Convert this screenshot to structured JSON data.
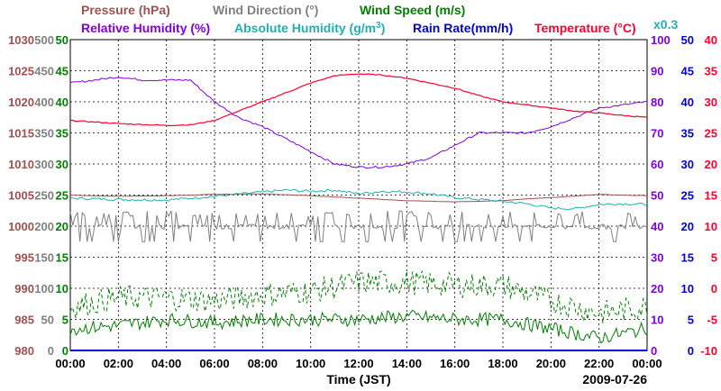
{
  "chart_data": {
    "type": "line",
    "x_axis": {
      "label": "Time (JST)",
      "date": "2009-07-26",
      "ticks": [
        "00:00",
        "02:00",
        "04:00",
        "06:00",
        "08:00",
        "10:00",
        "12:00",
        "14:00",
        "16:00",
        "18:00",
        "20:00",
        "22:00",
        "00:00"
      ],
      "range_hours": [
        0,
        24
      ]
    },
    "legend": [
      {
        "key": "pressure",
        "text": "Pressure (hPa)",
        "color": "#a05050"
      },
      {
        "key": "wind_dir",
        "text": "Wind Direction (°)",
        "color": "#808080"
      },
      {
        "key": "wind_speed",
        "text": "Wind Speed (m/s)",
        "color": "#008000"
      },
      {
        "key": "humidity",
        "text": "Relative Humidity (%)",
        "color": "#8000e0"
      },
      {
        "key": "abs_humidity_pre",
        "text": "Absolute Humidity (g/m",
        "color": "#20b0b0"
      },
      {
        "key": "abs_humidity_sup",
        "text": "3",
        "color": "#20b0b0"
      },
      {
        "key": "abs_humidity_post",
        "text": ")",
        "color": "#20b0b0"
      },
      {
        "key": "rain",
        "text": "Rain Rate(mm/h)",
        "color": "#0000e0"
      },
      {
        "key": "temperature",
        "text": "Temperature (°C)",
        "color": "#ff0030"
      },
      {
        "key": "rain_scale",
        "text": "x0.3",
        "color": "#20b0b0"
      }
    ],
    "axes": {
      "pressure": {
        "color": "#a05050",
        "labels": [
          "980",
          "985",
          "990",
          "995",
          "1000",
          "1005",
          "1010",
          "1015",
          "1020",
          "1025",
          "1030"
        ]
      },
      "wind_dir": {
        "color": "#808080",
        "labels": [
          "0",
          "50",
          "100",
          "150",
          "200",
          "250",
          "300",
          "350",
          "400",
          "450",
          "500"
        ]
      },
      "wind_speed": {
        "color": "#008000",
        "labels": [
          "0",
          "5",
          "10",
          "15",
          "20",
          "25",
          "30",
          "35",
          "40",
          "45",
          "50"
        ]
      },
      "humidity": {
        "color": "#8000e0",
        "labels": [
          "0",
          "10",
          "20",
          "30",
          "40",
          "50",
          "60",
          "70",
          "80",
          "90",
          "100"
        ]
      },
      "rain": {
        "color": "#0000e0",
        "labels": [
          "0",
          "5",
          "10",
          "15",
          "20",
          "25",
          "30",
          "35",
          "40",
          "45",
          "50"
        ]
      },
      "temperature": {
        "color": "#ff0030",
        "labels": [
          "-10",
          "-5",
          "0",
          "5",
          "10",
          "15",
          "20",
          "25",
          "30",
          "35",
          "40"
        ]
      }
    },
    "series": [
      {
        "name": "Temperature",
        "color": "#ff0030",
        "unit": "°C",
        "x": [
          0,
          2,
          4,
          5,
          6,
          7,
          8,
          9,
          10,
          11,
          12,
          13,
          14,
          15,
          16,
          17,
          18,
          19,
          20,
          21,
          22,
          23,
          24
        ],
        "y": [
          27.0,
          26.5,
          26.2,
          26.3,
          27.0,
          28.5,
          30.0,
          31.5,
          33.0,
          34.2,
          34.5,
          34.3,
          33.8,
          33.0,
          32.2,
          31.0,
          30.0,
          29.5,
          29.0,
          28.5,
          28.2,
          27.8,
          27.5
        ]
      },
      {
        "name": "Relative Humidity",
        "color": "#8000e0",
        "unit": "%",
        "x": [
          0,
          1,
          2,
          3,
          4,
          5,
          6,
          7,
          8,
          9,
          10,
          11,
          12,
          13,
          14,
          15,
          16,
          17,
          18,
          19,
          20,
          21,
          22,
          23,
          24
        ],
        "y": [
          86,
          87,
          88,
          87,
          87,
          87,
          80,
          75,
          72,
          68,
          64,
          60,
          59,
          59,
          60,
          62,
          66,
          70,
          70,
          70,
          72,
          75,
          78,
          79,
          80
        ]
      },
      {
        "name": "Absolute Humidity",
        "color": "#20b0b0",
        "unit": "g/m3",
        "x": [
          0,
          2,
          4,
          6,
          8,
          9,
          10,
          11,
          12,
          13,
          14,
          15,
          16,
          17,
          18,
          19,
          20,
          21,
          22,
          23,
          24
        ],
        "y": [
          24.5,
          24.3,
          24.2,
          24.8,
          25.5,
          25.8,
          25.6,
          25.8,
          25.2,
          25.6,
          25.5,
          25.2,
          24.6,
          24.3,
          24.0,
          23.6,
          22.9,
          22.8,
          23.5,
          23.6,
          23.5
        ]
      },
      {
        "name": "Pressure",
        "color": "#a05050",
        "unit": "hPa",
        "x": [
          0,
          2,
          4,
          6,
          8,
          10,
          12,
          14,
          16,
          18,
          20,
          22,
          24
        ],
        "y": [
          1005.0,
          1004.8,
          1004.9,
          1005.1,
          1005.2,
          1004.9,
          1004.5,
          1004.1,
          1003.9,
          1004.1,
          1004.6,
          1005.1,
          1004.9
        ]
      },
      {
        "name": "Wind Direction",
        "color": "#808080",
        "unit": "°",
        "typical_range": [
          180,
          220
        ]
      },
      {
        "name": "Wind Speed (mean)",
        "color": "#008000",
        "unit": "m/s",
        "x": [
          0,
          2,
          4,
          6,
          8,
          10,
          12,
          14,
          16,
          18,
          20,
          22,
          24
        ],
        "y": [
          3.5,
          4.0,
          5.0,
          4.5,
          5.0,
          5.0,
          5.0,
          5.5,
          5.0,
          5.0,
          3.5,
          2.0,
          3.5
        ]
      },
      {
        "name": "Wind Speed (gust)",
        "color": "#008000",
        "unit": "m/s",
        "dashed": true,
        "x": [
          0,
          2,
          4,
          6,
          8,
          10,
          12,
          14,
          16,
          18,
          20,
          22,
          24
        ],
        "y": [
          7.0,
          8.5,
          8.5,
          8.0,
          9.0,
          9.5,
          11.0,
          11.0,
          10.5,
          10.5,
          8.0,
          6.0,
          7.0
        ]
      },
      {
        "name": "Rain Rate",
        "color": "#0000e0",
        "unit": "mm/h",
        "x": [
          0,
          24
        ],
        "y": [
          0,
          0
        ]
      }
    ]
  }
}
